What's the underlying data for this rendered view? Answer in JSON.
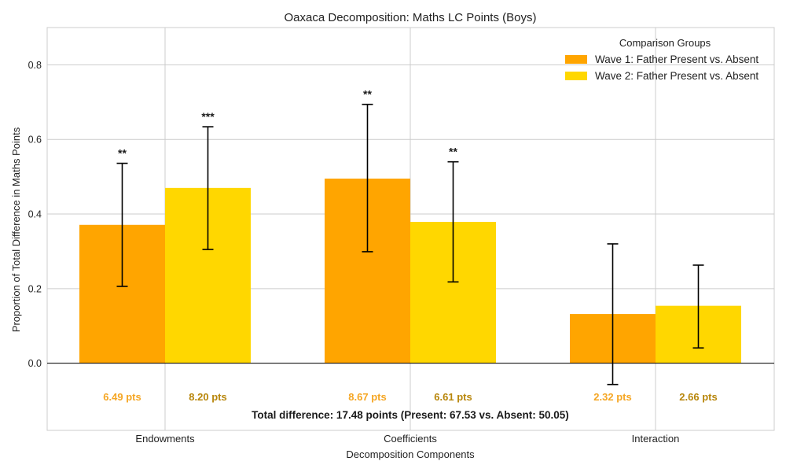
{
  "chart_data": {
    "type": "bar",
    "title": "Oaxaca Decomposition: Maths LC Points (Boys)",
    "xlabel": "Decomposition Components",
    "ylabel": "Proportion of Total Difference in Maths Points",
    "categories": [
      "Endowments",
      "Coefficients",
      "Interaction"
    ],
    "ylim": [
      -0.18,
      0.9
    ],
    "yticks": [
      0.0,
      0.2,
      0.4,
      0.6,
      0.8
    ],
    "ytick_labels": [
      "0.0",
      "0.2",
      "0.4",
      "0.6",
      "0.8"
    ],
    "grid": true,
    "legend": {
      "title": "Comparison Groups",
      "placement": "top-right"
    },
    "series": [
      {
        "name": "Wave 1: Father Present vs. Absent",
        "color": "#FFA500",
        "label_color": "#F5A623",
        "values": [
          0.371,
          0.495,
          0.132
        ],
        "err_low": [
          0.206,
          0.299,
          -0.057
        ],
        "err_high": [
          0.536,
          0.694,
          0.32
        ],
        "significance": [
          "**",
          "**",
          ""
        ],
        "point_labels": [
          "6.49 pts",
          "8.67 pts",
          "2.32 pts"
        ]
      },
      {
        "name": "Wave 2: Father Present vs. Absent",
        "color": "#FFD700",
        "label_color": "#B8860B",
        "values": [
          0.47,
          0.379,
          0.154
        ],
        "err_low": [
          0.305,
          0.218,
          0.041
        ],
        "err_high": [
          0.634,
          0.54,
          0.263
        ],
        "significance": [
          "***",
          "**",
          ""
        ],
        "point_labels": [
          "8.20 pts",
          "6.61 pts",
          "2.66 pts"
        ]
      }
    ],
    "annotation": "Total difference: 17.48 points (Present: 67.53 vs. Absent: 50.05)"
  }
}
